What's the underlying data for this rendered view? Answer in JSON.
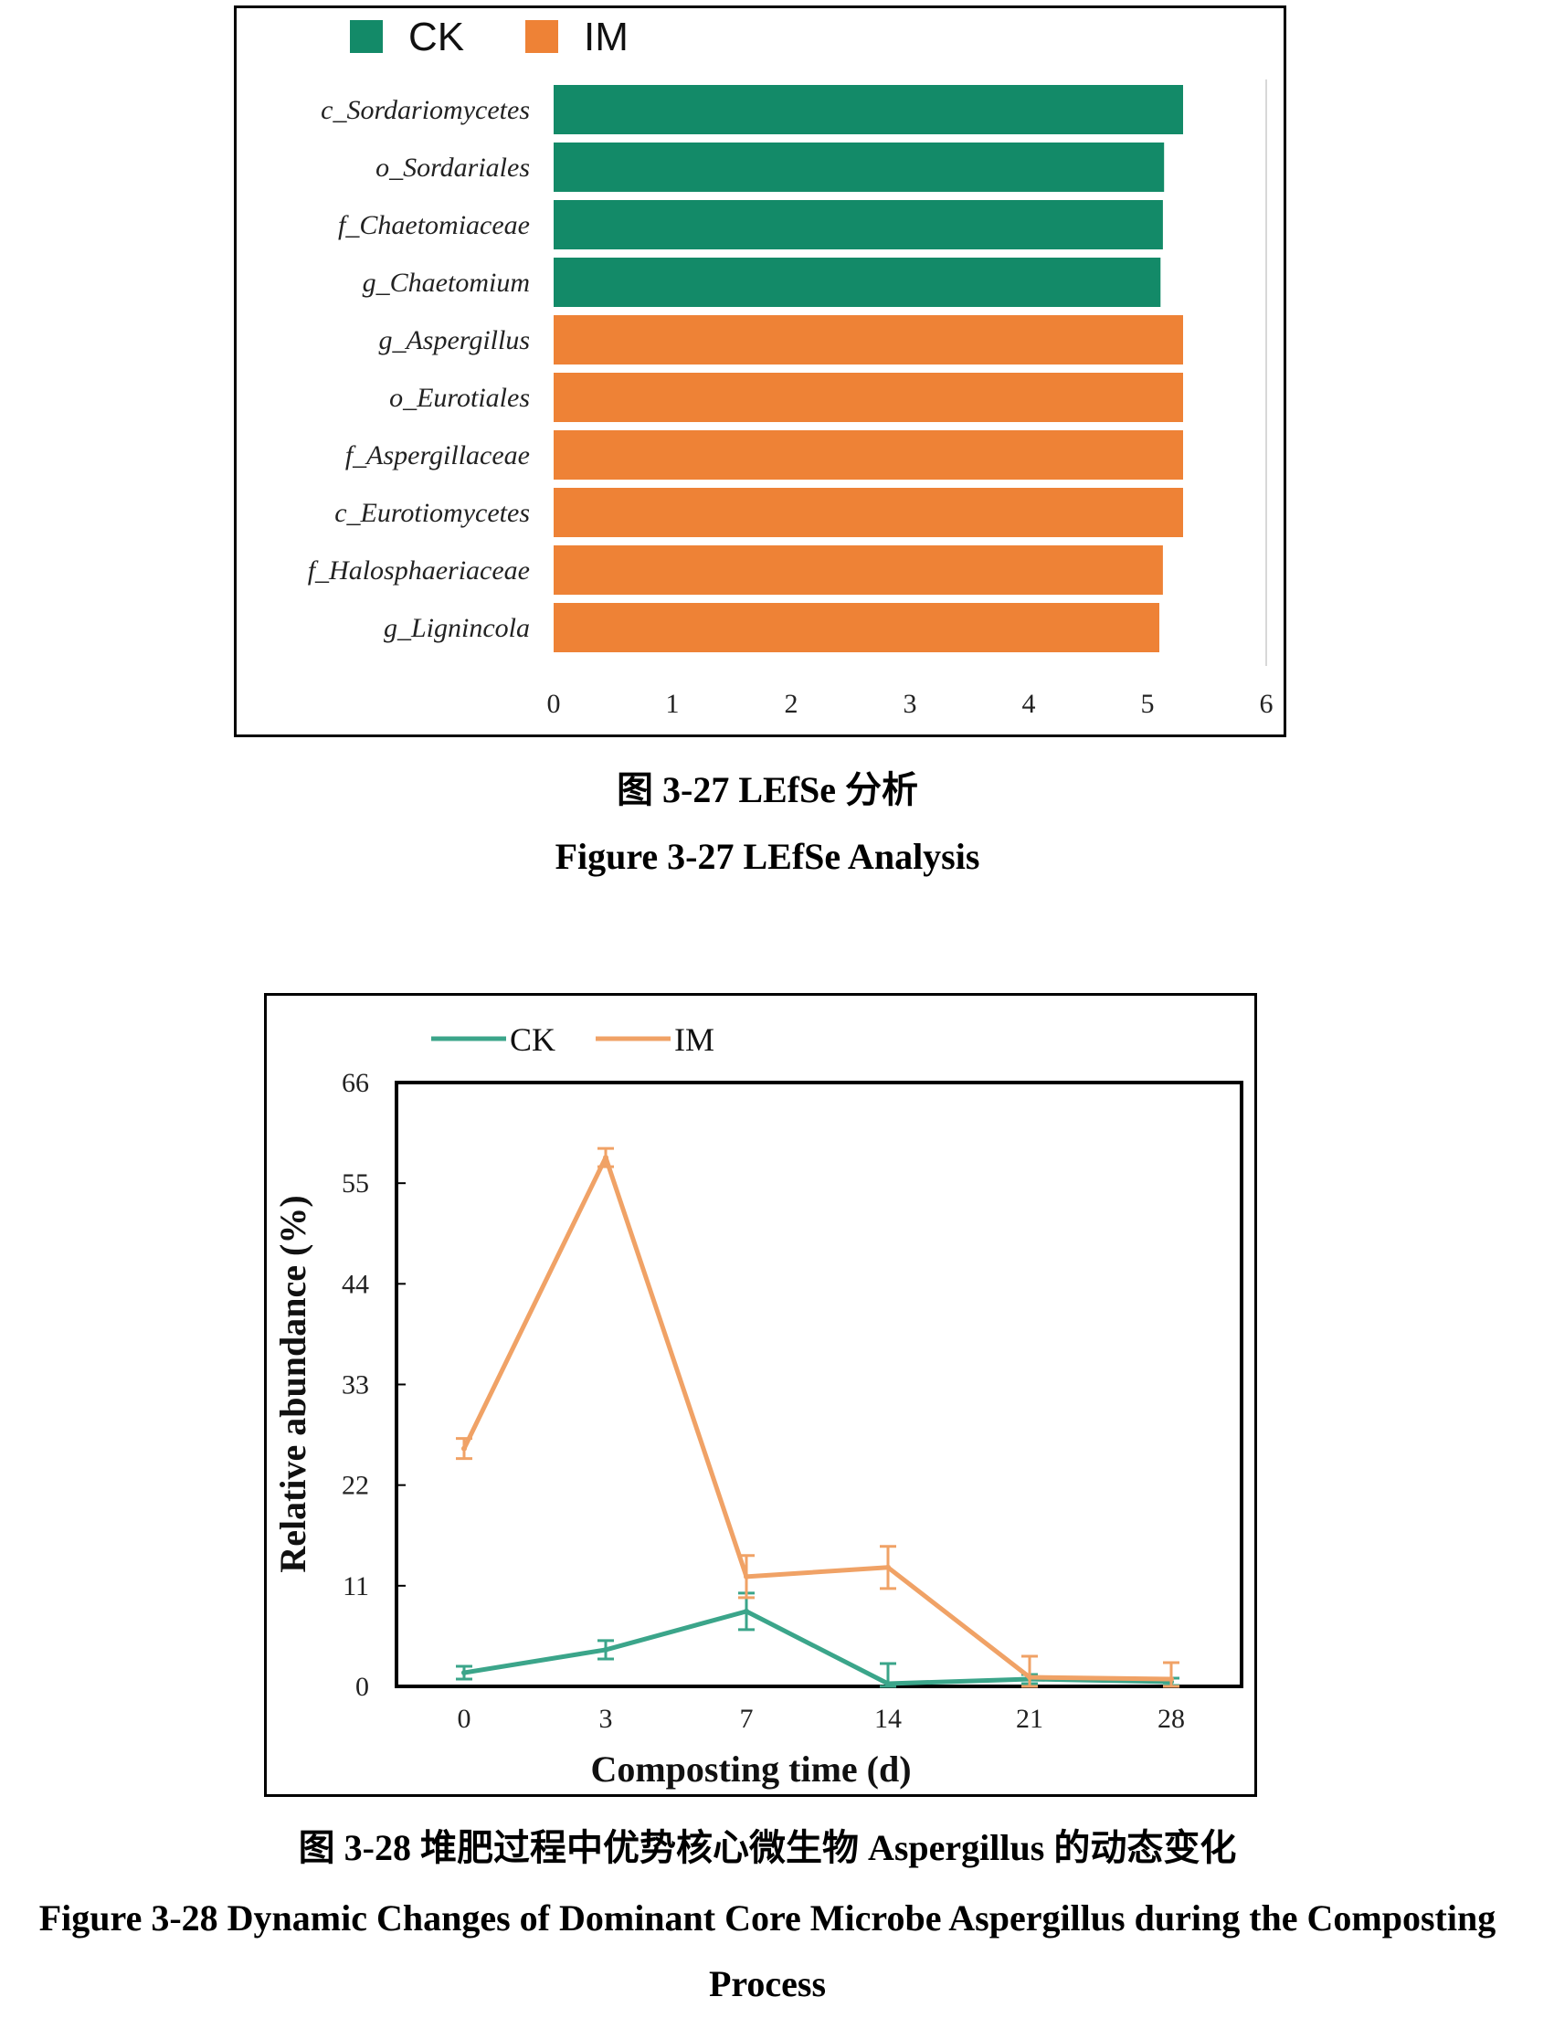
{
  "chart_data": [
    {
      "type": "bar",
      "orientation": "horizontal",
      "categories": [
        "c_Sordariomycetes",
        "o_Sordariales",
        "f_Chaetomiaceae",
        "g_Chaetomium",
        "g_Aspergillus",
        "o_Eurotiales",
        "f_Aspergillaceae",
        "c_Eurotiomycetes",
        "f_Halosphaeriaceae",
        "g_Lignincola"
      ],
      "values": [
        5.3,
        5.14,
        5.13,
        5.11,
        5.3,
        5.3,
        5.3,
        5.3,
        5.13,
        5.1
      ],
      "groups": [
        "CK",
        "CK",
        "CK",
        "CK",
        "IM",
        "IM",
        "IM",
        "IM",
        "IM",
        "IM"
      ],
      "legend": [
        {
          "name": "CK",
          "color": "#138a68"
        },
        {
          "name": "IM",
          "color": "#ee8236"
        }
      ],
      "xlim": [
        0,
        6
      ],
      "xticks": [
        "0",
        "1",
        "2",
        "3",
        "4",
        "5",
        "6"
      ],
      "legend_position": "top-left"
    },
    {
      "type": "line",
      "categories": [
        "0",
        "3",
        "7",
        "14",
        "21",
        "28"
      ],
      "series": [
        {
          "name": "CK",
          "color": "#3ba58a",
          "values": [
            1.5,
            4,
            8.2,
            0.3,
            0.8,
            0.5
          ],
          "errors": [
            0.7,
            1.0,
            2.0,
            2.2,
            0.5,
            0.4
          ]
        },
        {
          "name": "IM",
          "color": "#f0a266",
          "values": [
            26,
            57.8,
            12,
            13,
            1,
            0.8
          ],
          "errors": [
            1.1,
            1.0,
            2.3,
            2.3,
            2.3,
            1.8
          ]
        }
      ],
      "xlabel": "Composting time (d)",
      "ylabel": "Relative abundance (%)",
      "ylim": [
        0,
        66
      ],
      "yticks": [
        "0",
        "11",
        "22",
        "33",
        "44",
        "55",
        "66"
      ],
      "legend_position": "top-left"
    }
  ],
  "captions": {
    "fig1_cn": "图 3-27 LEfSe 分析",
    "fig1_en": "Figure 3-27 LEfSe Analysis",
    "fig2_cn": "图 3-28  堆肥过程中优势核心微生物 Aspergillus 的动态变化",
    "fig2_en_line1": "Figure 3-28 Dynamic Changes of Dominant Core Microbe Aspergillus during the Composting",
    "fig2_en_line2": "Process"
  }
}
